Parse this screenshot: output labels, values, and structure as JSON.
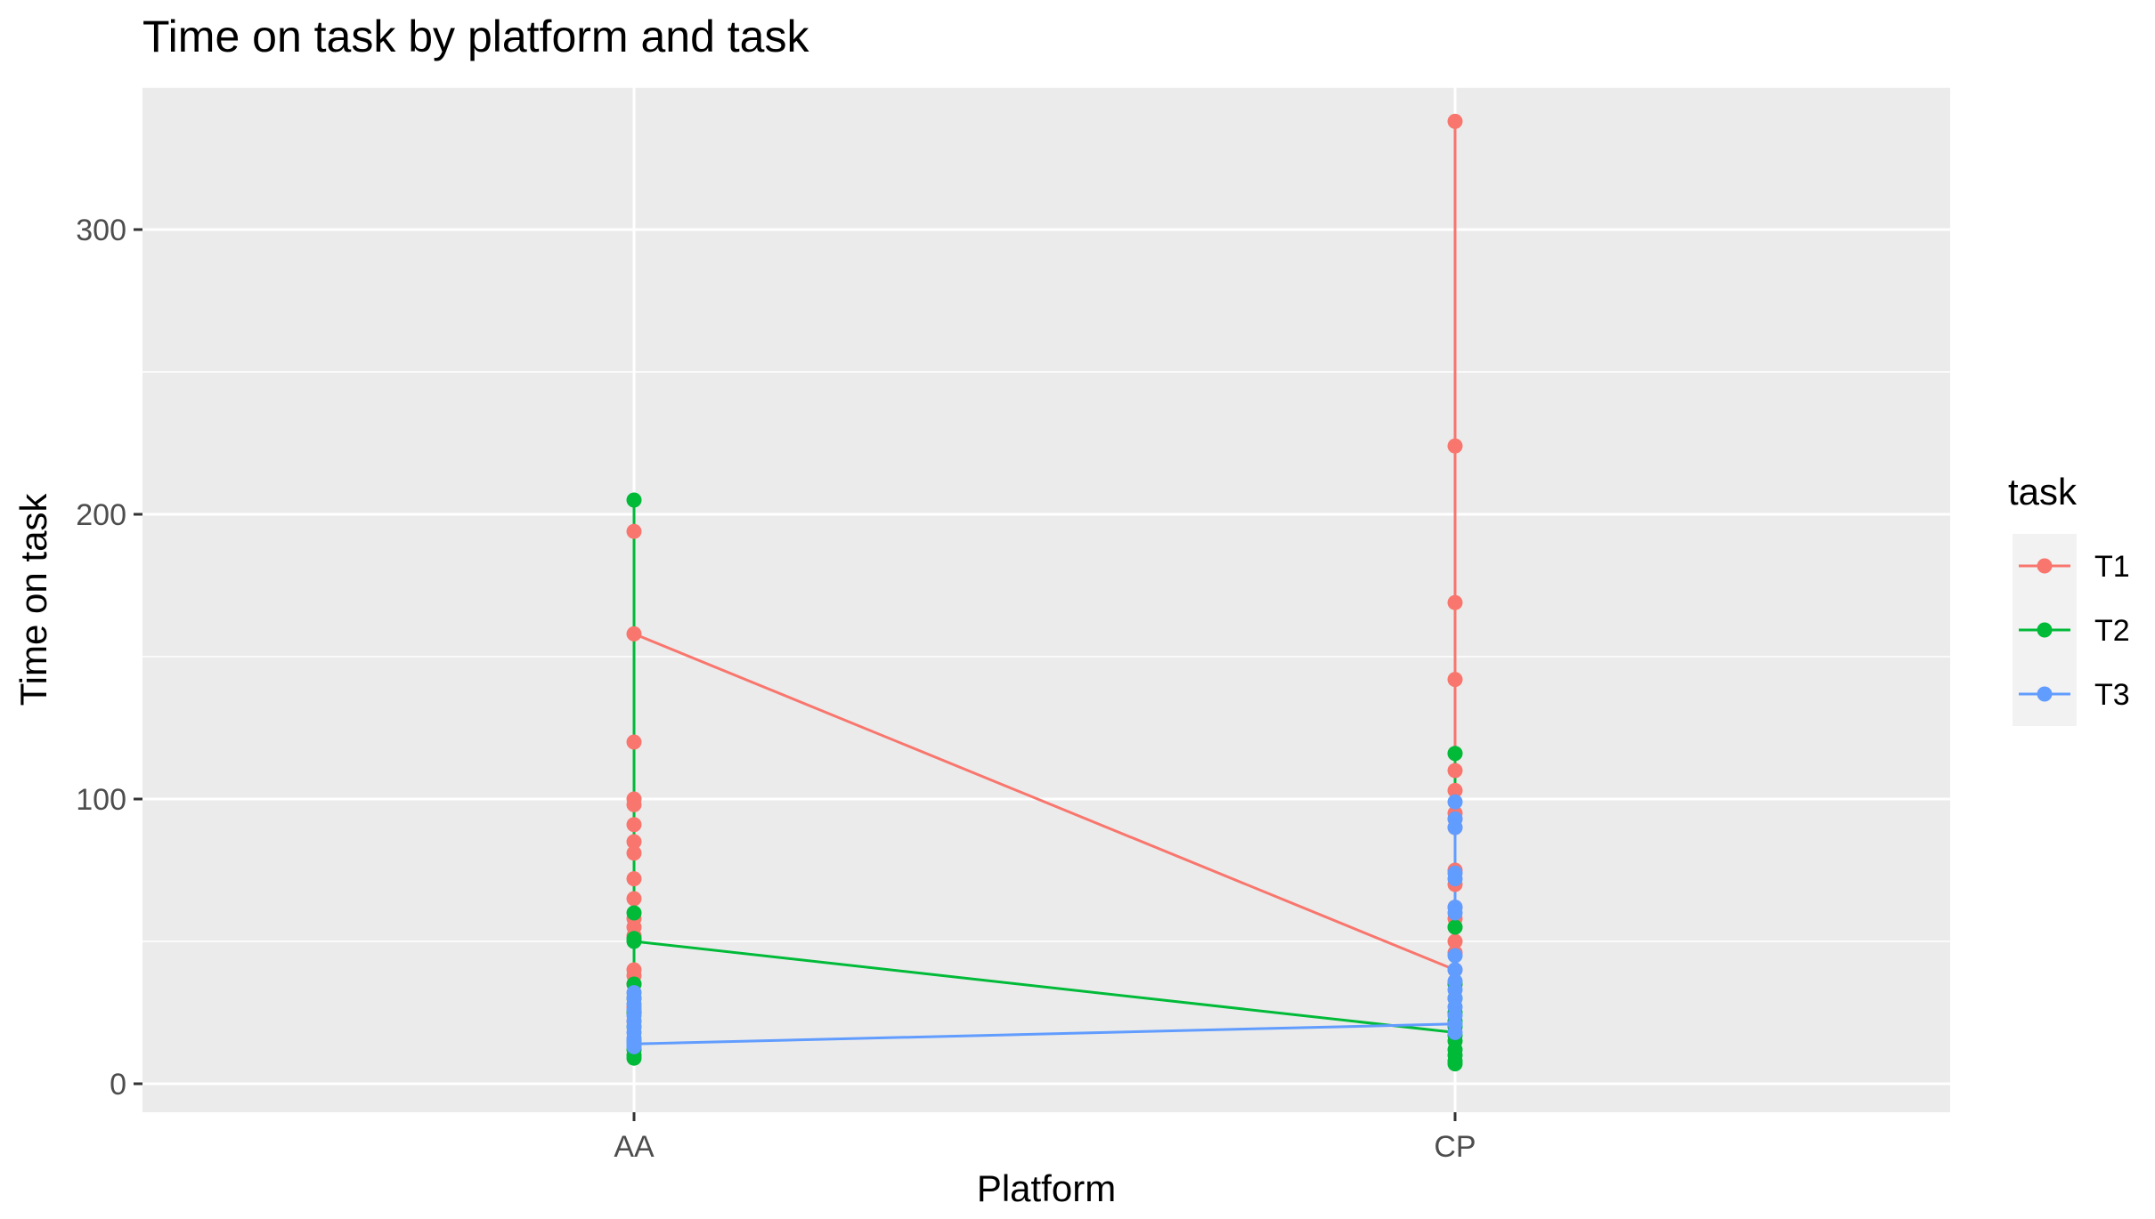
{
  "chart_data": {
    "type": "line",
    "title": "Time on task by platform and task",
    "xlabel": "Platform",
    "ylabel": "Time on task",
    "categories": [
      "AA",
      "CP"
    ],
    "ylim": [
      -10,
      350
    ],
    "yticks": [
      0,
      100,
      200,
      300
    ],
    "grid": true,
    "legend": {
      "title": "task",
      "placement": "right"
    },
    "series": [
      {
        "name": "T1",
        "color": "#F8766D",
        "line": [
          158,
          40
        ],
        "points": {
          "AA": [
            194,
            158,
            120,
            100,
            98,
            91,
            85,
            81,
            72,
            65,
            58,
            55,
            52,
            40,
            38,
            35,
            30,
            27,
            25,
            22
          ],
          "CP": [
            338,
            224,
            169,
            142,
            116,
            110,
            103,
            95,
            93,
            90,
            75,
            70,
            62,
            58,
            55,
            50,
            46,
            40,
            35,
            30
          ]
        }
      },
      {
        "name": "T2",
        "color": "#00BA38",
        "line": [
          50,
          18
        ],
        "points": {
          "AA": [
            205,
            60,
            51,
            50,
            35,
            30,
            25,
            20,
            15,
            12,
            10,
            9
          ],
          "CP": [
            116,
            55,
            35,
            30,
            25,
            22,
            20,
            17,
            15,
            12,
            10,
            8,
            7
          ]
        }
      },
      {
        "name": "T3",
        "color": "#619CFF",
        "line": [
          14,
          21
        ],
        "points": {
          "AA": [
            32,
            30,
            28,
            26,
            24,
            22,
            20,
            18,
            16,
            15,
            14,
            13
          ],
          "CP": [
            99,
            93,
            90,
            74,
            72,
            62,
            60,
            45,
            40,
            36,
            33,
            30,
            27,
            24,
            21,
            18
          ]
        }
      }
    ]
  }
}
